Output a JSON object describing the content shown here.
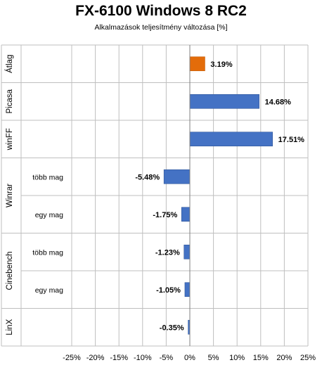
{
  "chart_data": {
    "type": "bar",
    "orientation": "horizontal",
    "title": "FX-6100 Windows 8 RC2",
    "subtitle": "Alkalmazások teljesítmény változása  [%]",
    "xlim": [
      -25,
      25
    ],
    "x_ticks": [
      "-25%",
      "-20%",
      "-15%",
      "-10%",
      "-5%",
      "0%",
      "5%",
      "10%",
      "15%",
      "20%",
      "25%"
    ],
    "grid": true,
    "colors": {
      "highlight": "#E36C0A",
      "default": "#4472C4"
    },
    "groups": [
      {
        "label": "Átlag",
        "rows": [
          {
            "sublabel": "",
            "value": 3.19,
            "value_label": "3.19%",
            "highlight": true
          }
        ]
      },
      {
        "label": "Picasa",
        "rows": [
          {
            "sublabel": "",
            "value": 14.68,
            "value_label": "14.68%",
            "highlight": false
          }
        ]
      },
      {
        "label": "winFF",
        "rows": [
          {
            "sublabel": "",
            "value": 17.51,
            "value_label": "17.51%",
            "highlight": false
          }
        ]
      },
      {
        "label": "Winrar",
        "rows": [
          {
            "sublabel": "több mag",
            "value": -5.48,
            "value_label": "-5.48%",
            "highlight": false
          },
          {
            "sublabel": "egy mag",
            "value": -1.75,
            "value_label": "-1.75%",
            "highlight": false
          }
        ]
      },
      {
        "label": "Cinebench",
        "rows": [
          {
            "sublabel": "több mag",
            "value": -1.23,
            "value_label": "-1.23%",
            "highlight": false
          },
          {
            "sublabel": "egy mag",
            "value": -1.05,
            "value_label": "-1.05%",
            "highlight": false
          }
        ]
      },
      {
        "label": "LinX",
        "rows": [
          {
            "sublabel": "",
            "value": -0.35,
            "value_label": "-0.35%",
            "highlight": false
          }
        ]
      }
    ]
  }
}
